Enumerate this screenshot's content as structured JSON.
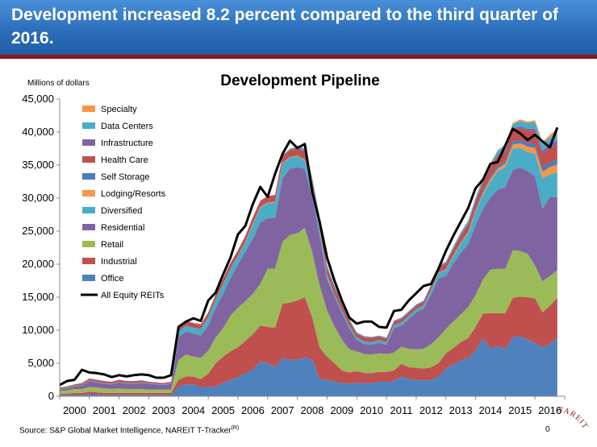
{
  "header": {
    "title": "Development increased 8.2 percent compared to the third quarter of 2016."
  },
  "footer": {
    "source": "Source: S&P Global Market Intelligence, NAREIT T-Tracker",
    "source_mark": "(R)",
    "page": "0"
  },
  "logo": {
    "text": "NAREIT"
  },
  "chart_data": {
    "type": "area",
    "title": "Development Pipeline",
    "ylabel": "Millions of dollars",
    "ylim": [
      0,
      45000
    ],
    "y_ticks": [
      "0",
      "5,000",
      "10,000",
      "15,000",
      "20,000",
      "25,000",
      "30,000",
      "35,000",
      "40,000",
      "45,000"
    ],
    "x_ticks": [
      "2000",
      "2001",
      "2002",
      "2003",
      "2004",
      "2005",
      "2006",
      "2007",
      "2008",
      "2009",
      "2010",
      "2011",
      "2012",
      "2013",
      "2014",
      "2015",
      "2016"
    ],
    "legend_position": "top-left",
    "grid": false,
    "x": [
      2000.0,
      2000.25,
      2000.5,
      2000.75,
      2001.0,
      2001.25,
      2001.5,
      2001.75,
      2002.0,
      2002.25,
      2002.5,
      2002.75,
      2003.0,
      2003.25,
      2003.5,
      2003.75,
      2004.0,
      2004.25,
      2004.5,
      2004.75,
      2005.0,
      2005.25,
      2005.5,
      2005.75,
      2006.0,
      2006.25,
      2006.5,
      2006.75,
      2007.0,
      2007.25,
      2007.5,
      2007.75,
      2008.0,
      2008.25,
      2008.5,
      2008.75,
      2009.0,
      2009.25,
      2009.5,
      2009.75,
      2010.0,
      2010.25,
      2010.5,
      2010.75,
      2011.0,
      2011.25,
      2011.5,
      2011.75,
      2012.0,
      2012.25,
      2012.5,
      2012.75,
      2013.0,
      2013.25,
      2013.5,
      2013.75,
      2014.0,
      2014.25,
      2014.5,
      2014.75,
      2015.0,
      2015.25,
      2015.5,
      2015.75,
      2016.0,
      2016.25,
      2016.5,
      2016.75
    ],
    "series": [
      {
        "name": "Office",
        "color": "#4f81bd",
        "values": [
          200,
          200,
          200,
          200,
          300,
          300,
          200,
          200,
          200,
          200,
          200,
          200,
          200,
          200,
          200,
          200,
          1500,
          1800,
          1800,
          1400,
          1400,
          1500,
          2000,
          2500,
          2900,
          3500,
          4000,
          5300,
          5000,
          4400,
          5800,
          5500,
          5500,
          5900,
          5600,
          2600,
          2500,
          2200,
          2000,
          1900,
          2000,
          2000,
          2000,
          2200,
          2200,
          2300,
          3000,
          2600,
          2500,
          2400,
          2500,
          3000,
          4200,
          4800,
          5400,
          5800,
          7000,
          8800,
          7300,
          7600,
          7200,
          9000,
          9100,
          8600,
          8100,
          7400,
          7900,
          8900
        ]
      },
      {
        "name": "Industrial",
        "color": "#c0504d",
        "values": [
          200,
          200,
          300,
          300,
          400,
          300,
          300,
          300,
          300,
          300,
          300,
          300,
          300,
          300,
          300,
          300,
          1000,
          1200,
          1200,
          1200,
          2000,
          3500,
          4000,
          4300,
          4500,
          4900,
          5400,
          5400,
          5500,
          6000,
          8200,
          8700,
          9000,
          9100,
          6400,
          4800,
          3500,
          2800,
          1900,
          1700,
          1800,
          1500,
          1500,
          1500,
          1500,
          1600,
          1900,
          1800,
          1800,
          1800,
          1900,
          2000,
          2300,
          2500,
          2800,
          3000,
          3500,
          3700,
          5300,
          5000,
          5400,
          5900,
          6000,
          6400,
          6700,
          5300,
          5800,
          6000
        ]
      },
      {
        "name": "Retail",
        "color": "#9bbb59",
        "values": [
          400,
          500,
          600,
          600,
          700,
          700,
          700,
          600,
          700,
          600,
          600,
          600,
          500,
          500,
          500,
          500,
          3000,
          3300,
          3000,
          3200,
          3500,
          3900,
          4300,
          5400,
          6000,
          6000,
          6100,
          6300,
          8800,
          8900,
          9400,
          10200,
          10200,
          10500,
          9800,
          9400,
          7000,
          5600,
          4700,
          3500,
          3000,
          2900,
          2800,
          2800,
          2700,
          2700,
          2600,
          2800,
          2800,
          3000,
          3500,
          3900,
          3700,
          4000,
          4200,
          4700,
          4800,
          5200,
          6600,
          6700,
          6700,
          7200,
          6900,
          6600,
          5000,
          4700,
          4500,
          4200
        ]
      },
      {
        "name": "Residential",
        "color": "#8064a2",
        "values": [
          200,
          300,
          400,
          500,
          900,
          800,
          700,
          700,
          900,
          800,
          800,
          900,
          900,
          800,
          700,
          900,
          3500,
          3500,
          3500,
          3400,
          3800,
          4500,
          5200,
          5700,
          6500,
          7500,
          8300,
          9300,
          7700,
          7700,
          9600,
          10100,
          10000,
          8900,
          8400,
          7600,
          4700,
          4500,
          4000,
          3200,
          1700,
          1500,
          1500,
          1600,
          1400,
          3700,
          3200,
          4500,
          5600,
          6100,
          7500,
          8900,
          8000,
          8800,
          9300,
          9500,
          10600,
          10700,
          10900,
          12000,
          12400,
          12200,
          12600,
          12500,
          13500,
          11000,
          12000,
          11000
        ]
      },
      {
        "name": "Diversified",
        "color": "#4bacc6",
        "values": [
          100,
          100,
          100,
          100,
          100,
          100,
          100,
          100,
          100,
          100,
          100,
          100,
          100,
          100,
          100,
          100,
          800,
          900,
          900,
          1000,
          1300,
          1300,
          1500,
          1500,
          1400,
          1300,
          2200,
          2200,
          2200,
          2300,
          2200,
          1600,
          1600,
          1300,
          1000,
          800,
          500,
          400,
          400,
          400,
          400,
          400,
          400,
          400,
          400,
          500,
          500,
          500,
          500,
          500,
          600,
          800,
          900,
          1100,
          1400,
          1600,
          2000,
          2100,
          2400,
          2800,
          3000,
          3200,
          3000,
          2900,
          3400,
          4600,
          3400,
          3800
        ]
      },
      {
        "name": "Lodging/Resorts",
        "color": "#f79646",
        "values": [
          0,
          0,
          0,
          0,
          0,
          0,
          0,
          0,
          0,
          0,
          0,
          0,
          0,
          0,
          0,
          0,
          0,
          0,
          0,
          0,
          0,
          0,
          0,
          0,
          0,
          100,
          100,
          100,
          100,
          100,
          100,
          100,
          100,
          100,
          100,
          100,
          100,
          0,
          0,
          0,
          0,
          0,
          0,
          0,
          0,
          0,
          0,
          0,
          0,
          0,
          0,
          100,
          100,
          100,
          100,
          200,
          200,
          300,
          400,
          400,
          500,
          600,
          700,
          800,
          900,
          1000,
          1100,
          1200
        ]
      },
      {
        "name": "Self Storage",
        "color": "#4a7ebb",
        "values": [
          0,
          0,
          0,
          0,
          0,
          0,
          0,
          0,
          0,
          0,
          0,
          0,
          0,
          0,
          0,
          0,
          0,
          0,
          0,
          0,
          0,
          0,
          0,
          0,
          0,
          100,
          100,
          100,
          100,
          100,
          100,
          100,
          100,
          100,
          100,
          100,
          100,
          0,
          0,
          0,
          0,
          0,
          0,
          0,
          0,
          0,
          0,
          0,
          0,
          0,
          100,
          100,
          100,
          100,
          200,
          200,
          300,
          300,
          300,
          400,
          400,
          500,
          500,
          600,
          600,
          700,
          700,
          800
        ]
      },
      {
        "name": "Health Care",
        "color": "#c0504d",
        "values": [
          200,
          200,
          200,
          300,
          300,
          300,
          300,
          300,
          300,
          300,
          300,
          300,
          200,
          200,
          200,
          200,
          700,
          700,
          700,
          700,
          700,
          700,
          800,
          800,
          800,
          900,
          900,
          900,
          900,
          1000,
          1000,
          1000,
          1100,
          1100,
          1200,
          1200,
          1000,
          900,
          800,
          700,
          600,
          600,
          600,
          500,
          500,
          500,
          500,
          500,
          500,
          500,
          600,
          700,
          800,
          900,
          1000,
          1100,
          1200,
          1300,
          1400,
          1500,
          1500,
          1700,
          1800,
          1800,
          1900,
          2000,
          2100,
          2200
        ]
      },
      {
        "name": "Infrastructure",
        "color": "#8064a2",
        "values": [
          0,
          0,
          0,
          0,
          0,
          0,
          0,
          0,
          0,
          0,
          0,
          0,
          0,
          0,
          0,
          0,
          0,
          0,
          0,
          0,
          0,
          0,
          0,
          0,
          0,
          0,
          0,
          0,
          0,
          0,
          0,
          0,
          0,
          200,
          200,
          200,
          200,
          200,
          200,
          100,
          100,
          100,
          100,
          100,
          100,
          100,
          100,
          100,
          100,
          100,
          100,
          100,
          100,
          100,
          100,
          100,
          100,
          100,
          100,
          200,
          200,
          200,
          300,
          300,
          400,
          500,
          600,
          700
        ]
      },
      {
        "name": "Data Centers",
        "color": "#4bacc6",
        "values": [
          0,
          0,
          0,
          0,
          0,
          0,
          0,
          0,
          0,
          0,
          0,
          0,
          0,
          0,
          0,
          0,
          0,
          0,
          0,
          0,
          0,
          0,
          0,
          0,
          0,
          0,
          0,
          0,
          0,
          0,
          100,
          200,
          200,
          300,
          300,
          300,
          300,
          200,
          200,
          200,
          100,
          100,
          100,
          100,
          100,
          100,
          100,
          100,
          100,
          100,
          100,
          200,
          200,
          300,
          300,
          400,
          400,
          500,
          500,
          600,
          700,
          700,
          800,
          900,
          1000,
          1000,
          1100,
          1200
        ]
      },
      {
        "name": "Specialty",
        "color": "#f79646",
        "values": [
          0,
          0,
          0,
          0,
          0,
          0,
          0,
          0,
          0,
          0,
          0,
          0,
          0,
          0,
          0,
          0,
          0,
          0,
          0,
          0,
          0,
          0,
          0,
          0,
          0,
          0,
          0,
          0,
          0,
          0,
          0,
          0,
          0,
          100,
          100,
          100,
          0,
          0,
          0,
          0,
          0,
          0,
          0,
          0,
          0,
          0,
          0,
          0,
          0,
          0,
          0,
          0,
          0,
          0,
          0,
          0,
          0,
          100,
          100,
          100,
          100,
          200,
          200,
          200,
          300,
          300,
          400,
          400
        ]
      }
    ],
    "total": {
      "name": "All Equity REITs",
      "color": "#000000",
      "values": [
        1700,
        2300,
        2500,
        4000,
        3600,
        3500,
        3300,
        2900,
        3200,
        3000,
        3200,
        3300,
        3200,
        2800,
        2800,
        3200,
        10500,
        11300,
        11800,
        11400,
        14500,
        15700,
        18400,
        21000,
        24500,
        25800,
        29100,
        31700,
        30200,
        33700,
        36700,
        38700,
        37600,
        38200,
        31000,
        26400,
        21000,
        17500,
        14500,
        11900,
        11000,
        11300,
        11300,
        10500,
        10400,
        12900,
        13100,
        14500,
        15600,
        16700,
        17000,
        19300,
        22000,
        24300,
        26400,
        28500,
        31500,
        32800,
        35200,
        35500,
        38000,
        40500,
        39800,
        38800,
        39600,
        38600,
        37700,
        40700
      ]
    }
  }
}
